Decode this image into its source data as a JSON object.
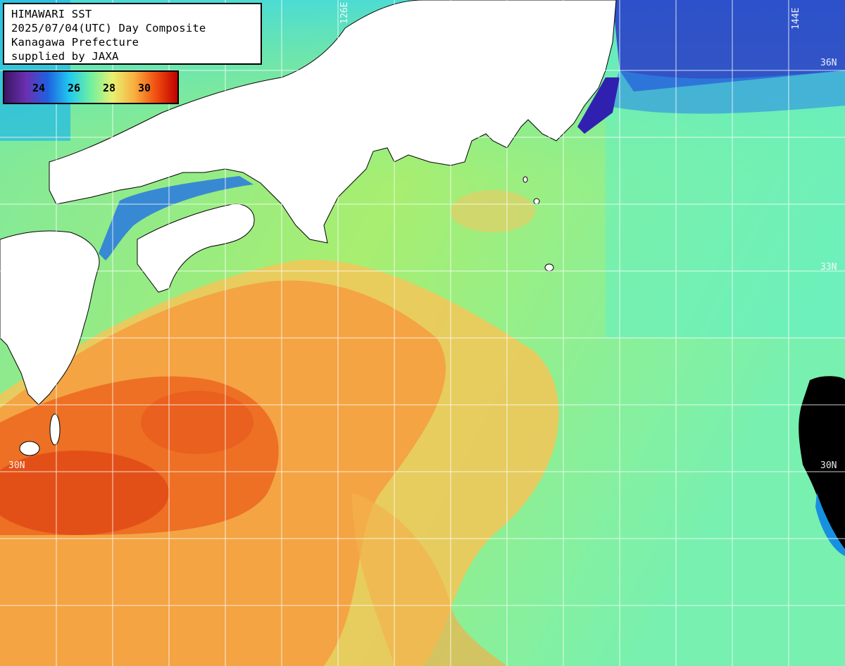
{
  "title": {
    "line1": "HIMAWARI SST",
    "line2": "2025/07/04(UTC) Day Composite",
    "line3": "Kanagawa Prefecture",
    "line4": "supplied by JAXA"
  },
  "colorbar": {
    "ticks": [
      "24",
      "26",
      "28",
      "30"
    ],
    "colors": [
      "#3a1660",
      "#6a2fb0",
      "#2060e0",
      "#20c8f0",
      "#70f0a0",
      "#e8f070",
      "#f8b040",
      "#f05010",
      "#c00000"
    ]
  },
  "grid_labels": {
    "lon_126": "126E",
    "lon_144": "144E",
    "lat_36": "36N",
    "lat_33": "33N",
    "lat_30_left": "30N",
    "lat_30_right": "30N"
  },
  "legend_colors": {
    "land": "#ffffff",
    "no_data": "#000000",
    "warm": "#e8601c",
    "cool": "#38d8d0"
  }
}
